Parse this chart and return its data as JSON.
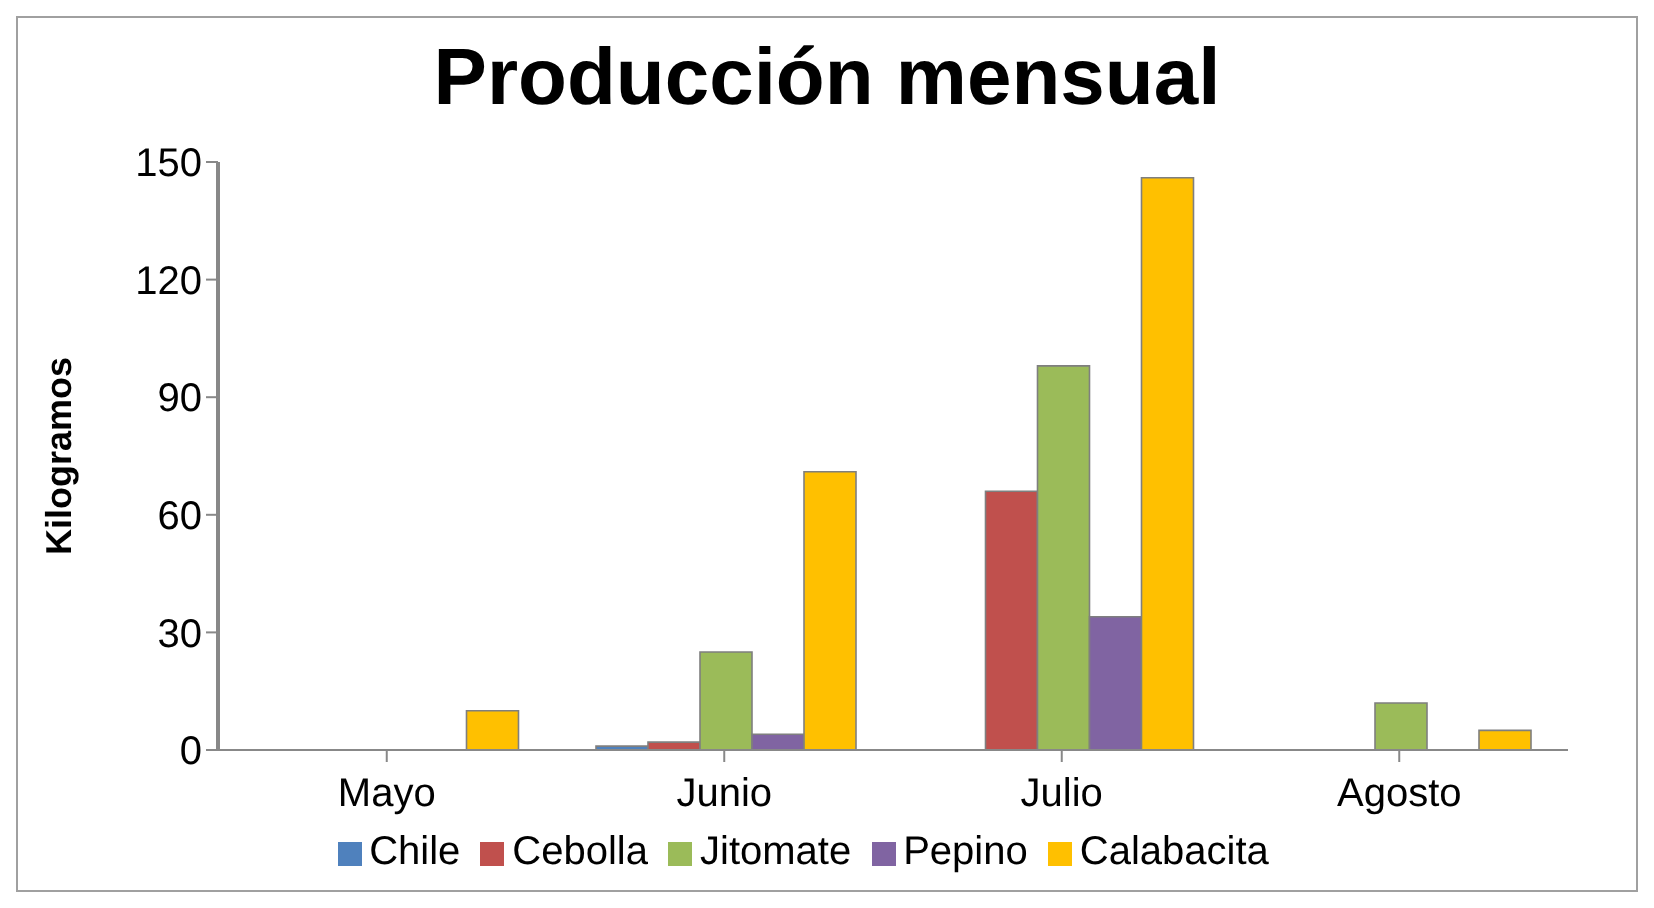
{
  "chart_data": {
    "type": "bar",
    "title": "Producción mensual",
    "ylabel": "Kilogramos",
    "categories": [
      "Mayo",
      "Junio",
      "Julio",
      "Agosto"
    ],
    "series": [
      {
        "name": "Chile",
        "color": "#4f81bd",
        "values": [
          0,
          1,
          0,
          0
        ]
      },
      {
        "name": "Cebolla",
        "color": "#c0504d",
        "values": [
          0,
          2,
          66,
          0
        ]
      },
      {
        "name": "Jitomate",
        "color": "#9bbb59",
        "values": [
          0,
          25,
          98,
          12
        ]
      },
      {
        "name": "Pepino",
        "color": "#8064a2",
        "values": [
          0,
          4,
          34,
          0
        ]
      },
      {
        "name": "Calabacita",
        "color": "#ffc000",
        "values": [
          10,
          71,
          146,
          5
        ]
      }
    ],
    "ylim": [
      0,
      150
    ],
    "yticks": [
      0,
      30,
      60,
      90,
      120,
      150
    ],
    "grid": false,
    "legend": "bottom"
  }
}
